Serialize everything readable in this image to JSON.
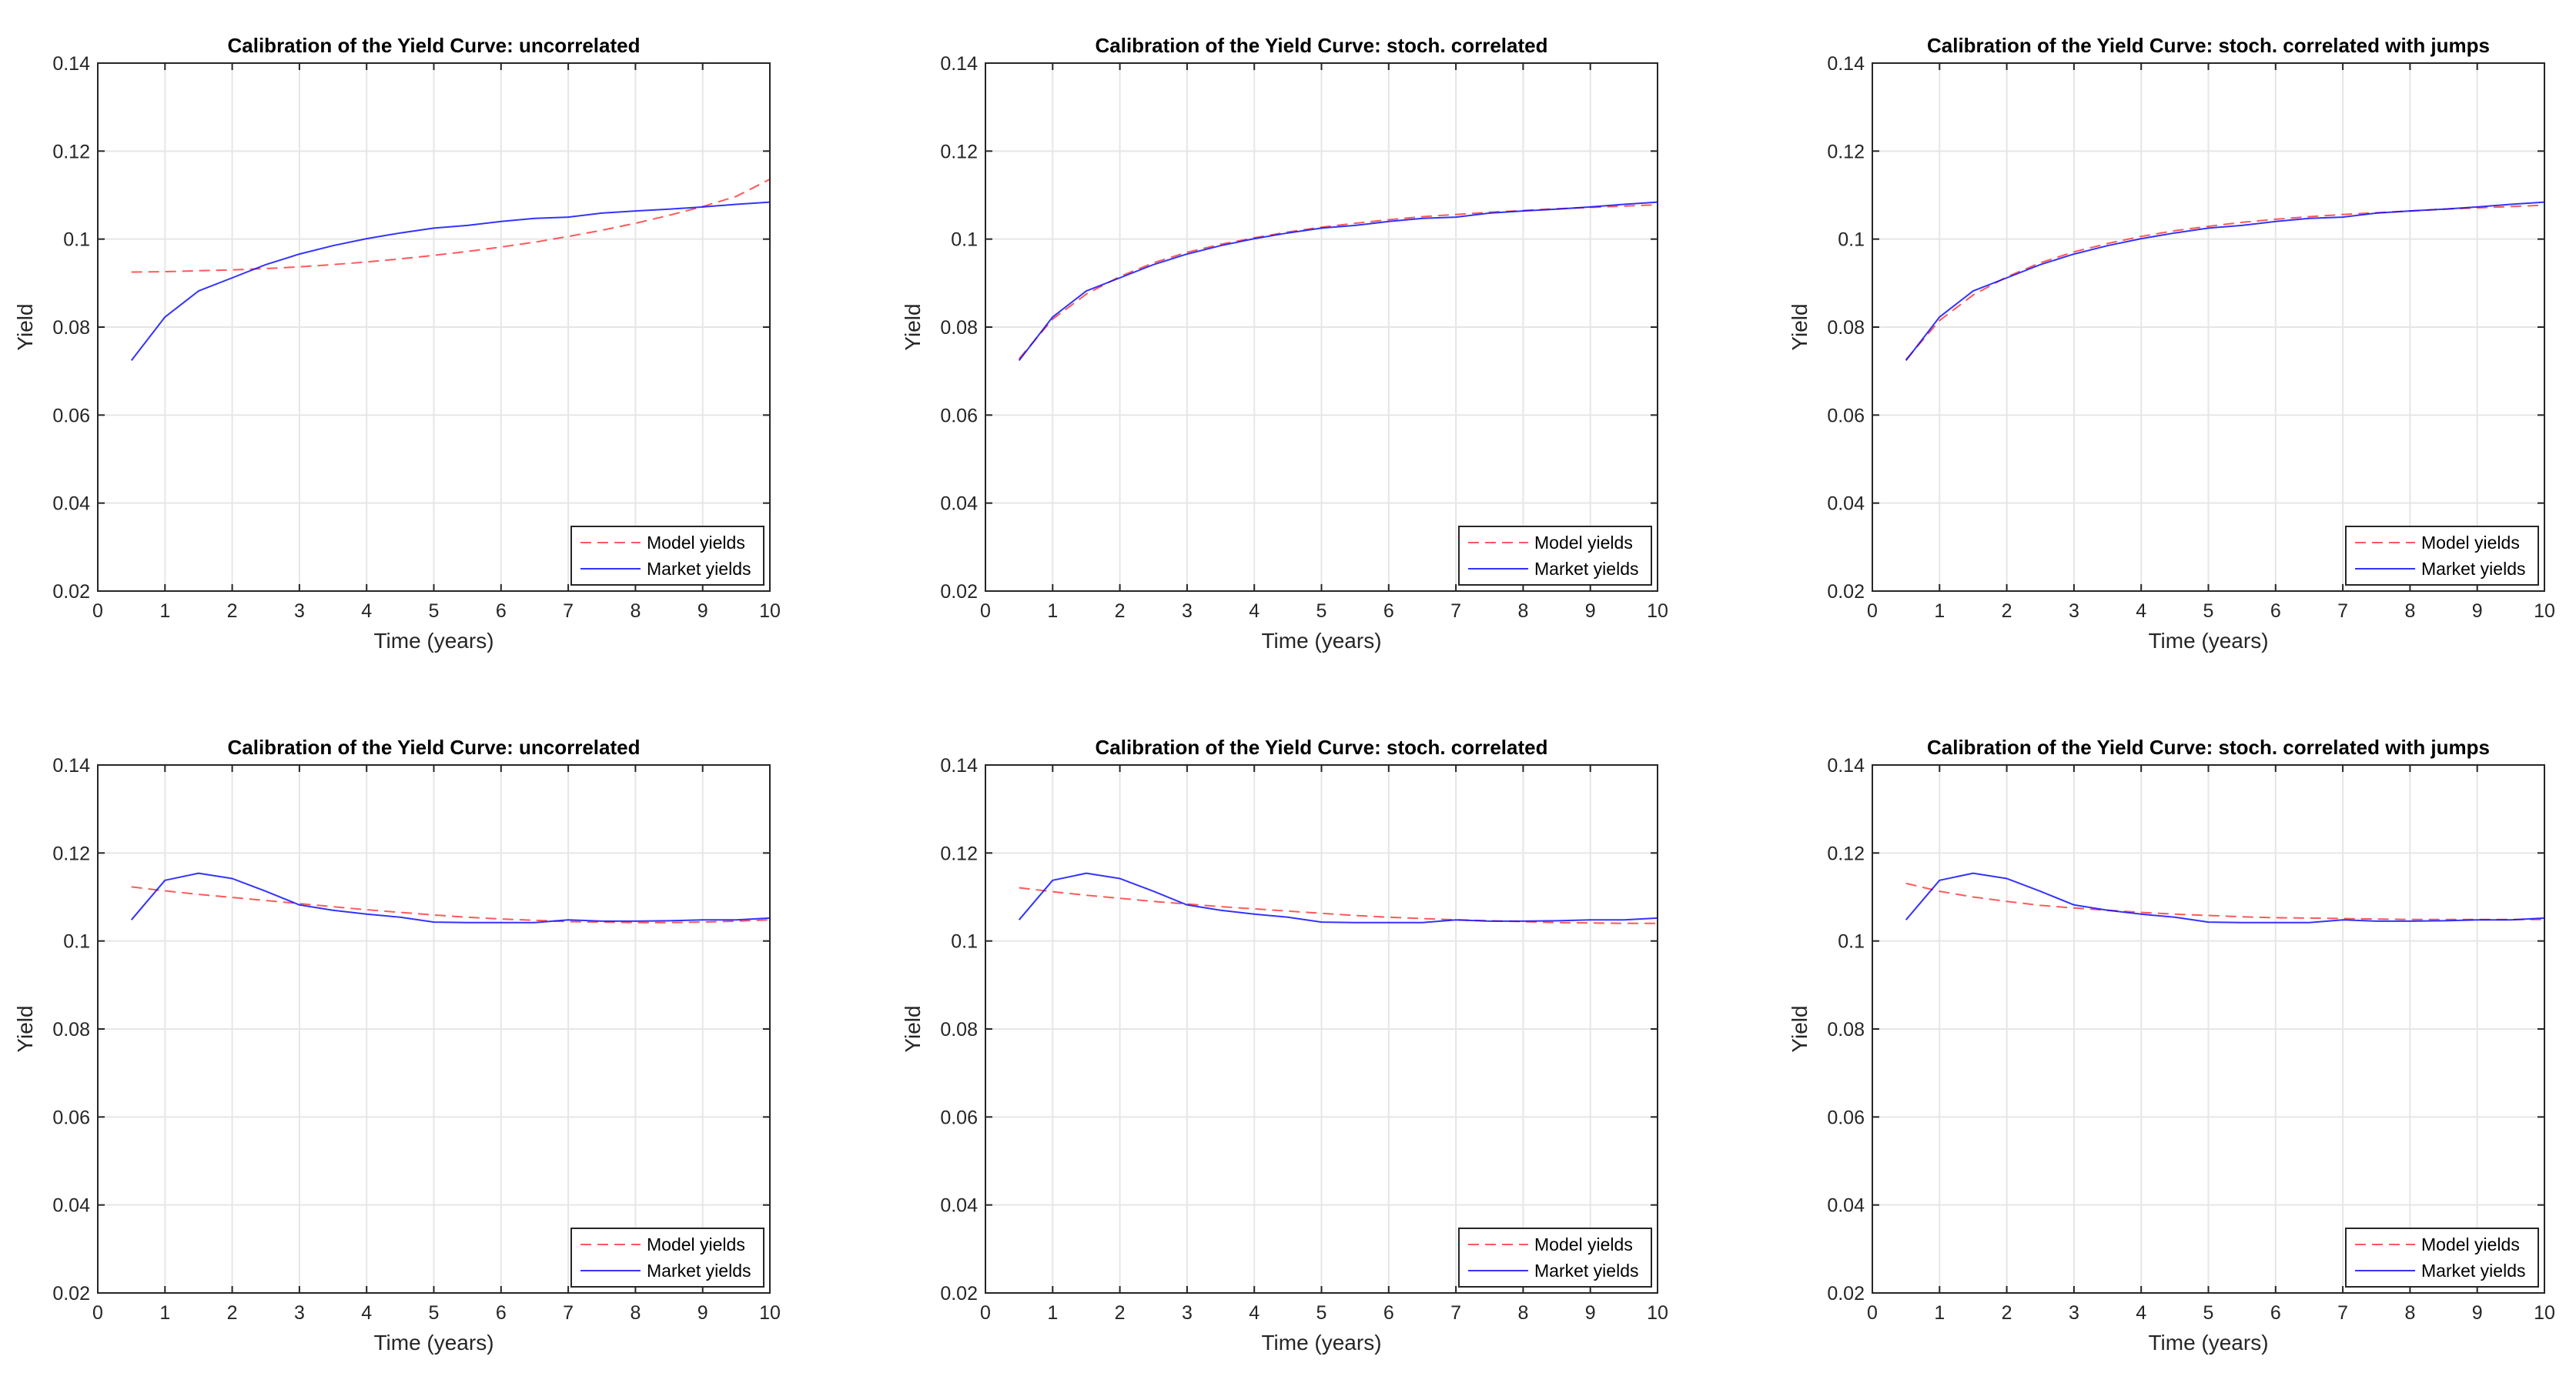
{
  "chart_data": [
    {
      "type": "line",
      "title": "Calibration of the Yield Curve: uncorrelated",
      "xlabel": "Time (years)",
      "ylabel": "Yield",
      "xlim": [
        0,
        10
      ],
      "ylim": [
        0.02,
        0.14
      ],
      "grid": true,
      "legend_position": "bottom-right",
      "x_ticks": [
        "0",
        "1",
        "2",
        "3",
        "4",
        "5",
        "6",
        "7",
        "8",
        "9",
        "10"
      ],
      "y_ticks": [
        "0.02",
        "0.04",
        "0.06",
        "0.08",
        "0.1",
        "0.12",
        "0.14"
      ],
      "x": [
        0.5,
        1,
        1.5,
        2,
        2.5,
        3,
        3.5,
        4,
        4.5,
        5,
        5.5,
        6,
        6.5,
        7,
        7.5,
        8,
        8.5,
        9,
        9.5,
        10
      ],
      "series": [
        {
          "name": "Model yields",
          "color": "#ff0000",
          "dash": "dashed",
          "values": [
            0.0925,
            0.0926,
            0.0928,
            0.093,
            0.0933,
            0.0937,
            0.0942,
            0.0948,
            0.0955,
            0.0963,
            0.0972,
            0.0982,
            0.0993,
            0.1006,
            0.102,
            0.1036,
            0.1054,
            0.1074,
            0.1097,
            0.1136
          ]
        },
        {
          "name": "Market yields",
          "color": "#0000ff",
          "dash": "solid",
          "values": [
            0.0724,
            0.0823,
            0.0882,
            0.0912,
            0.0942,
            0.0966,
            0.0985,
            0.1001,
            0.1014,
            0.1025,
            0.1031,
            0.104,
            0.1047,
            0.105,
            0.1059,
            0.1064,
            0.1068,
            0.1073,
            0.1079,
            0.1084
          ]
        }
      ]
    },
    {
      "type": "line",
      "title": "Calibration of the Yield Curve: stoch. correlated",
      "xlabel": "Time (years)",
      "ylabel": "Yield",
      "xlim": [
        0,
        10
      ],
      "ylim": [
        0.02,
        0.14
      ],
      "grid": true,
      "legend_position": "bottom-right",
      "x_ticks": [
        "0",
        "1",
        "2",
        "3",
        "4",
        "5",
        "6",
        "7",
        "8",
        "9",
        "10"
      ],
      "y_ticks": [
        "0.02",
        "0.04",
        "0.06",
        "0.08",
        "0.1",
        "0.12",
        "0.14"
      ],
      "x": [
        0.5,
        1,
        1.5,
        2,
        2.5,
        3,
        3.5,
        4,
        4.5,
        5,
        5.5,
        6,
        6.5,
        7,
        7.5,
        8,
        8.5,
        9,
        9.5,
        10
      ],
      "series": [
        {
          "name": "Model yields",
          "color": "#ff0000",
          "dash": "dashed",
          "values": [
            0.0728,
            0.0818,
            0.0875,
            0.0915,
            0.0946,
            0.097,
            0.0988,
            0.1003,
            0.1016,
            0.1027,
            0.1036,
            0.1044,
            0.1051,
            0.1056,
            0.1061,
            0.1065,
            0.1069,
            0.1072,
            0.1075,
            0.1078
          ]
        },
        {
          "name": "Market yields",
          "color": "#0000ff",
          "dash": "solid",
          "values": [
            0.0724,
            0.0823,
            0.0882,
            0.0912,
            0.0942,
            0.0966,
            0.0985,
            0.1001,
            0.1014,
            0.1025,
            0.1031,
            0.104,
            0.1047,
            0.105,
            0.1059,
            0.1064,
            0.1068,
            0.1073,
            0.1079,
            0.1084
          ]
        }
      ]
    },
    {
      "type": "line",
      "title": "Calibration of the Yield Curve: stoch. correlated with jumps",
      "xlabel": "Time (years)",
      "ylabel": "Yield",
      "xlim": [
        0,
        10
      ],
      "ylim": [
        0.02,
        0.14
      ],
      "grid": true,
      "legend_position": "bottom-right",
      "x_ticks": [
        "0",
        "1",
        "2",
        "3",
        "4",
        "5",
        "6",
        "7",
        "8",
        "9",
        "10"
      ],
      "y_ticks": [
        "0.02",
        "0.04",
        "0.06",
        "0.08",
        "0.1",
        "0.12",
        "0.14"
      ],
      "x": [
        0.5,
        1,
        1.5,
        2,
        2.5,
        3,
        3.5,
        4,
        4.5,
        5,
        5.5,
        6,
        6.5,
        7,
        7.5,
        8,
        8.5,
        9,
        9.5,
        10
      ],
      "series": [
        {
          "name": "Model yields",
          "color": "#ff0000",
          "dash": "dashed",
          "values": [
            0.0726,
            0.0815,
            0.0873,
            0.0914,
            0.0946,
            0.0971,
            0.099,
            0.1006,
            0.1019,
            0.1029,
            0.1038,
            0.1045,
            0.1051,
            0.1056,
            0.106,
            0.1064,
            0.1068,
            0.1071,
            0.1074,
            0.1077
          ]
        },
        {
          "name": "Market yields",
          "color": "#0000ff",
          "dash": "solid",
          "values": [
            0.0724,
            0.0823,
            0.0882,
            0.0912,
            0.0942,
            0.0966,
            0.0985,
            0.1001,
            0.1014,
            0.1025,
            0.1031,
            0.104,
            0.1047,
            0.105,
            0.1059,
            0.1064,
            0.1068,
            0.1073,
            0.1079,
            0.1084
          ]
        }
      ]
    },
    {
      "type": "line",
      "title": "Calibration of the Yield Curve: uncorrelated",
      "xlabel": "Time (years)",
      "ylabel": "Yield",
      "xlim": [
        0,
        10
      ],
      "ylim": [
        0.02,
        0.14
      ],
      "grid": true,
      "legend_position": "bottom-right",
      "x_ticks": [
        "0",
        "1",
        "2",
        "3",
        "4",
        "5",
        "6",
        "7",
        "8",
        "9",
        "10"
      ],
      "y_ticks": [
        "0.02",
        "0.04",
        "0.06",
        "0.08",
        "0.1",
        "0.12",
        "0.14"
      ],
      "x": [
        0.5,
        1,
        1.5,
        2,
        2.5,
        3,
        3.5,
        4,
        4.5,
        5,
        5.5,
        6,
        6.5,
        7,
        7.5,
        8,
        8.5,
        9,
        9.5,
        10
      ],
      "series": [
        {
          "name": "Model yields",
          "color": "#ff0000",
          "dash": "dashed",
          "values": [
            0.1123,
            0.1114,
            0.1106,
            0.1099,
            0.1092,
            0.1085,
            0.1078,
            0.1071,
            0.1065,
            0.1059,
            0.1054,
            0.105,
            0.1047,
            0.1044,
            0.1043,
            0.1042,
            0.1042,
            0.1043,
            0.1045,
            0.1048
          ]
        },
        {
          "name": "Market yields",
          "color": "#0000ff",
          "dash": "solid",
          "values": [
            0.1048,
            0.1138,
            0.1154,
            0.1142,
            0.1113,
            0.1082,
            0.107,
            0.1061,
            0.1054,
            0.1043,
            0.1042,
            0.1042,
            0.1042,
            0.1048,
            0.1045,
            0.1045,
            0.1046,
            0.1048,
            0.1048,
            0.1052
          ]
        }
      ]
    },
    {
      "type": "line",
      "title": "Calibration of the Yield Curve: stoch. correlated",
      "xlabel": "Time (years)",
      "ylabel": "Yield",
      "xlim": [
        0,
        10
      ],
      "ylim": [
        0.02,
        0.14
      ],
      "grid": true,
      "legend_position": "bottom-right",
      "x_ticks": [
        "0",
        "1",
        "2",
        "3",
        "4",
        "5",
        "6",
        "7",
        "8",
        "9",
        "10"
      ],
      "y_ticks": [
        "0.02",
        "0.04",
        "0.06",
        "0.08",
        "0.1",
        "0.12",
        "0.14"
      ],
      "x": [
        0.5,
        1,
        1.5,
        2,
        2.5,
        3,
        3.5,
        4,
        4.5,
        5,
        5.5,
        6,
        6.5,
        7,
        7.5,
        8,
        8.5,
        9,
        9.5,
        10
      ],
      "series": [
        {
          "name": "Model yields",
          "color": "#ff0000",
          "dash": "dashed",
          "values": [
            0.1121,
            0.1112,
            0.1104,
            0.1097,
            0.109,
            0.1084,
            0.1078,
            0.1073,
            0.1068,
            0.1063,
            0.1058,
            0.1054,
            0.1051,
            0.1048,
            0.1046,
            0.1044,
            0.1042,
            0.1041,
            0.104,
            0.104
          ]
        },
        {
          "name": "Market yields",
          "color": "#0000ff",
          "dash": "solid",
          "values": [
            0.1048,
            0.1138,
            0.1154,
            0.1142,
            0.1113,
            0.1082,
            0.107,
            0.1061,
            0.1054,
            0.1043,
            0.1042,
            0.1042,
            0.1042,
            0.1048,
            0.1045,
            0.1045,
            0.1046,
            0.1048,
            0.1048,
            0.1052
          ]
        }
      ]
    },
    {
      "type": "line",
      "title": "Calibration of the Yield Curve: stoch. correlated with jumps",
      "xlabel": "Time (years)",
      "ylabel": "Yield",
      "xlim": [
        0,
        10
      ],
      "ylim": [
        0.02,
        0.14
      ],
      "grid": true,
      "legend_position": "bottom-right",
      "x_ticks": [
        "0",
        "1",
        "2",
        "3",
        "4",
        "5",
        "6",
        "7",
        "8",
        "9",
        "10"
      ],
      "y_ticks": [
        "0.02",
        "0.04",
        "0.06",
        "0.08",
        "0.1",
        "0.12",
        "0.14"
      ],
      "x": [
        0.5,
        1,
        1.5,
        2,
        2.5,
        3,
        3.5,
        4,
        4.5,
        5,
        5.5,
        6,
        6.5,
        7,
        7.5,
        8,
        8.5,
        9,
        9.5,
        10
      ],
      "series": [
        {
          "name": "Model yields",
          "color": "#ff0000",
          "dash": "dashed",
          "values": [
            0.1131,
            0.1113,
            0.11,
            0.109,
            0.1081,
            0.1075,
            0.107,
            0.1065,
            0.1061,
            0.1058,
            0.1055,
            0.1053,
            0.1052,
            0.1051,
            0.105,
            0.1049,
            0.1049,
            0.1049,
            0.1049,
            0.1049
          ]
        },
        {
          "name": "Market yields",
          "color": "#0000ff",
          "dash": "solid",
          "values": [
            0.1048,
            0.1138,
            0.1154,
            0.1142,
            0.1113,
            0.1082,
            0.107,
            0.1061,
            0.1054,
            0.1043,
            0.1042,
            0.1042,
            0.1042,
            0.1048,
            0.1045,
            0.1045,
            0.1046,
            0.1048,
            0.1048,
            0.1052
          ]
        }
      ]
    }
  ]
}
